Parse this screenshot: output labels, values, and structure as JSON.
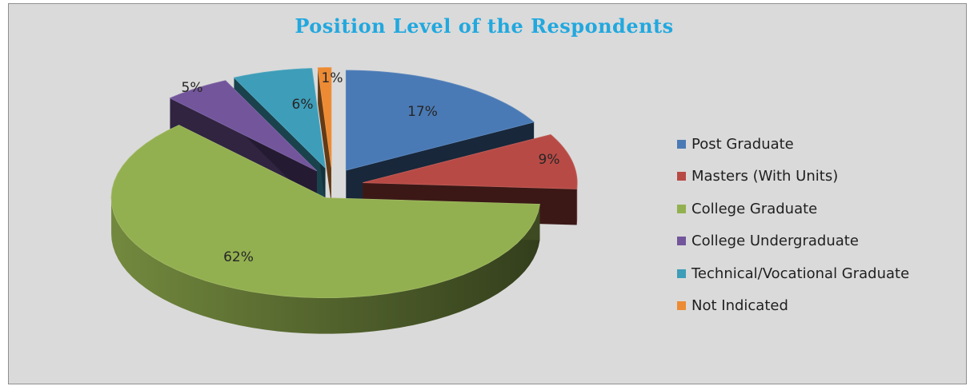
{
  "chart_data": {
    "type": "pie",
    "title": "Position Level of the Respondents",
    "categories": [
      "Post Graduate",
      "Masters (With Units)",
      "College Graduate",
      "College Undergraduate",
      "Technical/Vocational Graduate",
      "Not Indicated"
    ],
    "values": [
      17,
      9,
      62,
      5,
      6,
      1
    ],
    "data_labels": [
      "17%",
      "9%",
      "62%",
      "5%",
      "6%",
      "1%"
    ],
    "colors": [
      "#4a7ab5",
      "#b84a45",
      "#93b050",
      "#72559b",
      "#3e9db8",
      "#ec8b34"
    ],
    "exploded": true,
    "three_d": true,
    "legend_position": "right"
  }
}
